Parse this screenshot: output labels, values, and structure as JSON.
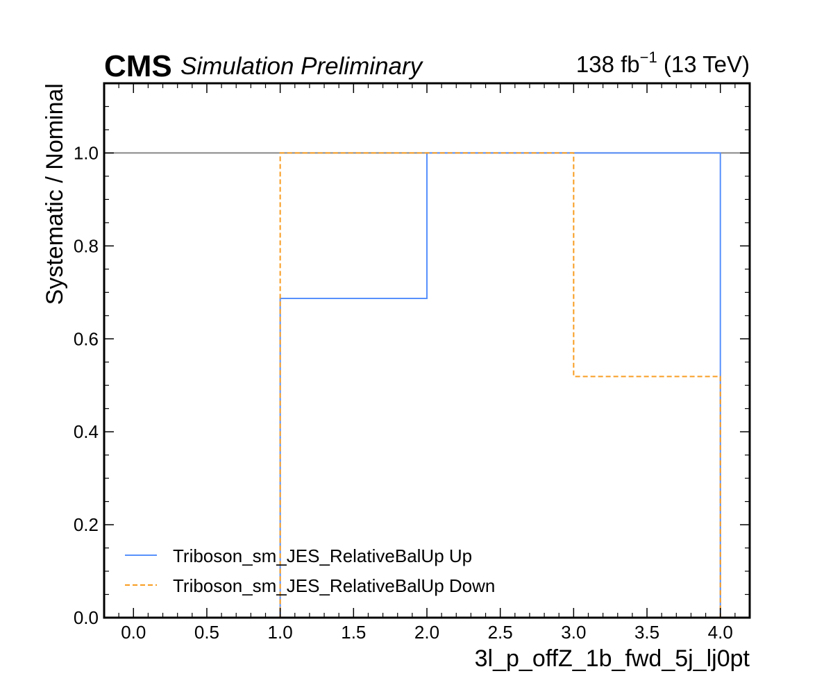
{
  "header": {
    "experiment": "CMS",
    "status": "Simulation Preliminary",
    "lumi_value": "138 fb",
    "lumi_exponent": "−1",
    "lumi_energy": " (13 TeV)"
  },
  "chart_data": {
    "type": "line",
    "xlabel": "3l_p_offZ_1b_fwd_5j_lj0pt",
    "ylabel": "Systematic / Nominal",
    "xlim": [
      -0.2,
      4.2
    ],
    "ylim": [
      0.0,
      1.15
    ],
    "xticks": [
      "0.0",
      "0.5",
      "1.0",
      "1.5",
      "2.0",
      "2.5",
      "3.0",
      "3.5",
      "4.0"
    ],
    "yticks": [
      "0.0",
      "0.2",
      "0.4",
      "0.6",
      "0.8",
      "1.0"
    ],
    "reference_line": 1.0,
    "bin_edges": [
      0,
      1,
      2,
      3,
      4
    ],
    "series": [
      {
        "name": "Triboson_sm_JES_RelativeBalUp Up",
        "style": "solid",
        "color": "#5790fc",
        "values": [
          0.0,
          0.687,
          1.0,
          1.0
        ]
      },
      {
        "name": "Triboson_sm_JES_RelativeBalUp Down",
        "style": "dashed",
        "color": "#f89c20",
        "values": [
          0.0,
          1.0,
          1.0,
          0.519
        ]
      }
    ],
    "legend_position": "lower-left",
    "grid": false
  }
}
